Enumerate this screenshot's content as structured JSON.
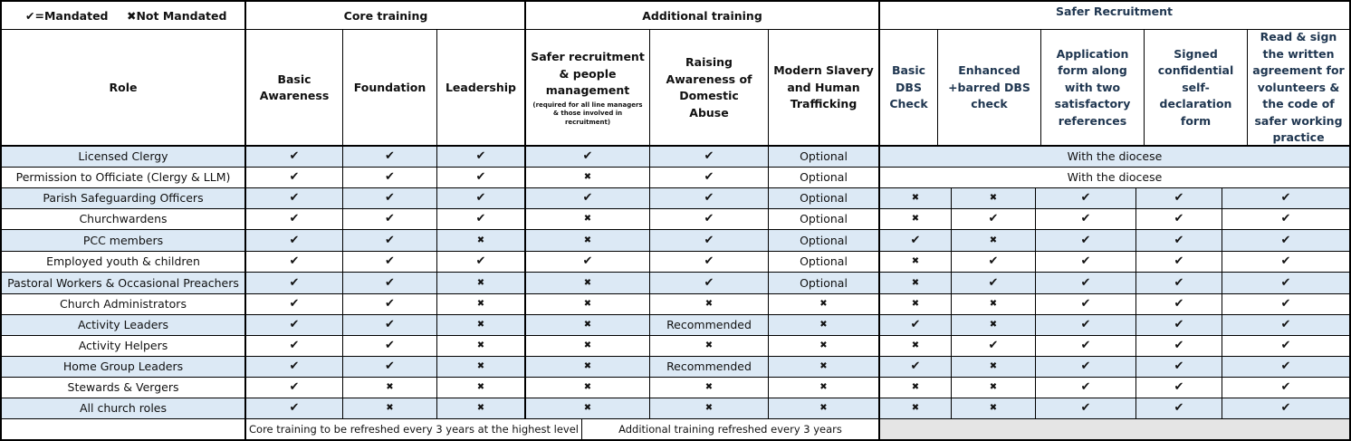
{
  "legend": {
    "mandated": "✔=Mandated",
    "not_mandated": "✖Not Mandated"
  },
  "groups": {
    "core": "Core training",
    "additional": "Additional training",
    "safer": "Safer Recruitment"
  },
  "columns": {
    "role": "Role",
    "basic": "Basic Awareness",
    "foundation": "Foundation",
    "leadership": "Leadership",
    "safer_people": "Safer recruitment & people management",
    "safer_people_note": "(required for all line managers & those involved in recruitment)",
    "domestic_abuse": "Raising Awareness of Domestic Abuse",
    "modern_slavery": "Modern Slavery and Human Trafficking",
    "basic_dbs": "Basic DBS Check",
    "enhanced_dbs": "Enhanced +barred DBS check",
    "application": "Application form along with two satisfactory references",
    "declaration": "Signed confidential self-declaration form",
    "agreement": "Read & sign the written agreement for volunteers & the code of safer working practice"
  },
  "symbols": {
    "tick": "✔",
    "cross": "✖"
  },
  "rows": [
    {
      "role": "Licensed Clergy",
      "c": [
        "Y",
        "Y",
        "Y",
        "Y",
        "Y",
        "Optional"
      ],
      "diocese": "With the diocese"
    },
    {
      "role": "Permission to Officiate (Clergy & LLM)",
      "c": [
        "Y",
        "Y",
        "Y",
        "N",
        "Y",
        "Optional"
      ],
      "diocese": "With the diocese"
    },
    {
      "role": "Parish Safeguarding Officers",
      "c": [
        "Y",
        "Y",
        "Y",
        "Y",
        "Y",
        "Optional"
      ],
      "s": [
        "N",
        "N",
        "Y",
        "Y",
        "Y"
      ]
    },
    {
      "role": "Churchwardens",
      "c": [
        "Y",
        "Y",
        "Y",
        "N",
        "Y",
        "Optional"
      ],
      "s": [
        "N",
        "Y",
        "Y",
        "Y",
        "Y"
      ]
    },
    {
      "role": "PCC members",
      "c": [
        "Y",
        "Y",
        "N",
        "N",
        "Y",
        "Optional"
      ],
      "s": [
        "Y",
        "N",
        "Y",
        "Y",
        "Y"
      ]
    },
    {
      "role": "Employed youth & children",
      "c": [
        "Y",
        "Y",
        "Y",
        "Y",
        "Y",
        "Optional"
      ],
      "s": [
        "N",
        "Y",
        "Y",
        "Y",
        "Y"
      ]
    },
    {
      "role": "Pastoral Workers & Occasional Preachers",
      "c": [
        "Y",
        "Y",
        "N",
        "N",
        "Y",
        "Optional"
      ],
      "s": [
        "N",
        "Y",
        "Y",
        "Y",
        "Y"
      ]
    },
    {
      "role": "Church Administrators",
      "c": [
        "Y",
        "Y",
        "N",
        "N",
        "N",
        "N"
      ],
      "s": [
        "N",
        "N",
        "Y",
        "Y",
        "Y"
      ]
    },
    {
      "role": "Activity Leaders",
      "c": [
        "Y",
        "Y",
        "N",
        "N",
        "Recommended",
        "N"
      ],
      "s": [
        "Y",
        "N",
        "Y",
        "Y",
        "Y"
      ]
    },
    {
      "role": "Activity Helpers",
      "c": [
        "Y",
        "Y",
        "N",
        "N",
        "N",
        "N"
      ],
      "s": [
        "N",
        "Y",
        "Y",
        "Y",
        "Y"
      ]
    },
    {
      "role": "Home Group Leaders",
      "c": [
        "Y",
        "Y",
        "N",
        "N",
        "Recommended",
        "N"
      ],
      "s": [
        "Y",
        "N",
        "Y",
        "Y",
        "Y"
      ]
    },
    {
      "role": "Stewards & Vergers",
      "c": [
        "Y",
        "N",
        "N",
        "N",
        "N",
        "N"
      ],
      "s": [
        "N",
        "N",
        "Y",
        "Y",
        "Y"
      ]
    },
    {
      "role": "All church roles",
      "c": [
        "Y",
        "N",
        "N",
        "N",
        "N",
        "N"
      ],
      "s": [
        "N",
        "N",
        "Y",
        "Y",
        "Y"
      ]
    }
  ],
  "footer": {
    "core": "Core training to be refreshed every 3 years at the highest level",
    "additional": "Additional training refreshed every 3 years"
  }
}
